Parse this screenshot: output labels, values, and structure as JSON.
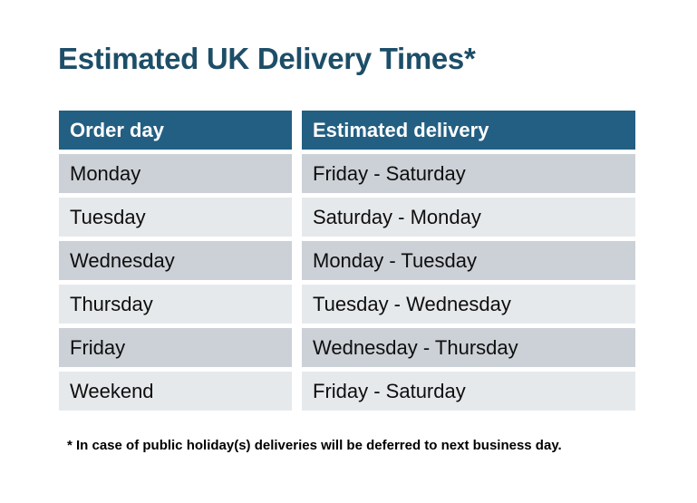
{
  "page": {
    "title": "Estimated UK Delivery Times*",
    "footnote": "* In case of public holiday(s) deliveries will be deferred to next business day."
  },
  "table": {
    "headers": {
      "order_day": "Order day",
      "estimated_delivery": "Estimated delivery"
    },
    "rows": [
      {
        "order_day": "Monday",
        "estimated_delivery": "Friday - Saturday"
      },
      {
        "order_day": "Tuesday",
        "estimated_delivery": "Saturday - Monday"
      },
      {
        "order_day": "Wednesday",
        "estimated_delivery": "Monday - Tuesday"
      },
      {
        "order_day": "Thursday",
        "estimated_delivery": "Tuesday - Wednesday"
      },
      {
        "order_day": "Friday",
        "estimated_delivery": "Wednesday - Thursday"
      },
      {
        "order_day": "Weekend",
        "estimated_delivery": "Friday - Saturday"
      }
    ]
  },
  "colors": {
    "title_text": "#1D4E68",
    "header_bg": "#235F83",
    "header_text": "#FFFFFF",
    "row_odd_bg": "#CCD1D7",
    "row_even_bg": "#E6E9EB",
    "body_text": "#0E0E0E",
    "page_bg": "#FFFFFF"
  }
}
